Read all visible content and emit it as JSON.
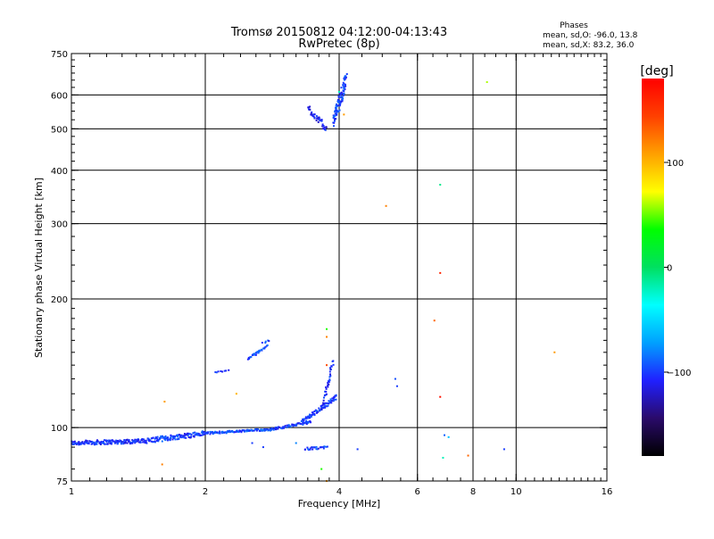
{
  "chart_data": {
    "type": "scatter",
    "title": "Tromsø 20150812 04:12:00-04:13:43",
    "subtitle": "RwPretec (8p)",
    "xlabel": "Frequency [MHz]",
    "ylabel": "Stationary phase Virtual Height [km]",
    "x_scale": "log",
    "y_scale": "log",
    "xlim": [
      1,
      16
    ],
    "ylim": [
      75,
      750
    ],
    "x_ticks": [
      {
        "value": 1,
        "label": "1"
      },
      {
        "value": 2,
        "label": "2"
      },
      {
        "value": 4,
        "label": "4"
      },
      {
        "value": 6,
        "label": "6"
      },
      {
        "value": 8,
        "label": "8"
      },
      {
        "value": 10,
        "label": "10"
      },
      {
        "value": 16,
        "label": "16"
      }
    ],
    "y_ticks": [
      {
        "value": 75,
        "label": "75"
      },
      {
        "value": 100,
        "label": "100"
      },
      {
        "value": 200,
        "label": "200"
      },
      {
        "value": 300,
        "label": "300"
      },
      {
        "value": 400,
        "label": "400"
      },
      {
        "value": 500,
        "label": "500"
      },
      {
        "value": 600,
        "label": "600"
      },
      {
        "value": 750,
        "label": "750"
      }
    ],
    "grid": true,
    "grid_x": [
      2,
      4,
      6,
      8,
      10
    ],
    "grid_y": [
      100,
      200,
      300,
      400,
      500,
      600
    ],
    "stats": {
      "heading": "Phases",
      "line_o": "mean, sd,O: -96.0, 13.8",
      "line_x": "mean, sd,X:  83.2, 36.0"
    },
    "colorbar": {
      "label": "[deg]",
      "range": [
        -180,
        180
      ],
      "ticks": [
        {
          "value": 100,
          "label": "100"
        },
        {
          "value": 0,
          "label": "0"
        },
        {
          "value": -100,
          "label": "−100"
        }
      ],
      "colors": [
        "#000000",
        "#2a0a6a",
        "#2020ff",
        "#00a0ff",
        "#00ffff",
        "#00e060",
        "#00ff00",
        "#ffff00",
        "#ffa000",
        "#ff4000",
        "#ff0000"
      ]
    },
    "series": [
      {
        "style": "trace",
        "segments": [
          {
            "x_start": 1.0,
            "x_end": 1.45,
            "y_start": 92,
            "y_end": 93,
            "n": 160,
            "jitter": 0.012,
            "phase": -105
          },
          {
            "x_start": 1.45,
            "x_end": 2.0,
            "y_start": 93,
            "y_end": 97,
            "n": 130,
            "jitter": 0.014,
            "phase": -100
          },
          {
            "x_start": 2.0,
            "x_end": 2.8,
            "y_start": 97,
            "y_end": 99,
            "n": 110,
            "jitter": 0.006,
            "phase": -95
          },
          {
            "x_start": 2.8,
            "x_end": 3.45,
            "y_start": 99,
            "y_end": 103,
            "n": 70,
            "jitter": 0.006,
            "phase": -100
          },
          {
            "x_start": 3.3,
            "x_end": 3.95,
            "y_start": 103,
            "y_end": 118,
            "n": 80,
            "jitter": 0.012,
            "phase": -100
          },
          {
            "x_start": 3.65,
            "x_end": 3.88,
            "y_start": 110,
            "y_end": 143,
            "n": 40,
            "jitter": 0.012,
            "phase": -105
          },
          {
            "x_start": 2.5,
            "x_end": 2.75,
            "y_start": 145,
            "y_end": 155,
            "n": 30,
            "jitter": 0.006,
            "phase": -95
          },
          {
            "x_start": 2.7,
            "x_end": 2.78,
            "y_start": 158,
            "y_end": 160,
            "n": 5,
            "jitter": 0.004,
            "phase": -100
          },
          {
            "x_start": 2.1,
            "x_end": 2.25,
            "y_start": 135,
            "y_end": 136,
            "n": 8,
            "jitter": 0.004,
            "phase": -100
          },
          {
            "x_start": 3.35,
            "x_end": 3.75,
            "y_start": 89,
            "y_end": 90,
            "n": 24,
            "jitter": 0.008,
            "phase": -100
          },
          {
            "x_start": 3.4,
            "x_end": 3.75,
            "y_start": 560,
            "y_end": 500,
            "n": 40,
            "jitter": 0.02,
            "phase": -110
          },
          {
            "x_start": 3.88,
            "x_end": 4.15,
            "y_start": 520,
            "y_end": 650,
            "n": 90,
            "jitter": 0.035,
            "phase": -100
          }
        ]
      },
      {
        "style": "points",
        "points": [
          {
            "x": 8.6,
            "y": 643,
            "phase": 60
          },
          {
            "x": 6.75,
            "y": 370,
            "phase": -10
          },
          {
            "x": 5.1,
            "y": 330,
            "phase": 120
          },
          {
            "x": 6.75,
            "y": 230,
            "phase": 160
          },
          {
            "x": 6.55,
            "y": 178,
            "phase": 130
          },
          {
            "x": 12.2,
            "y": 150,
            "phase": 110
          },
          {
            "x": 6.75,
            "y": 118,
            "phase": 170
          },
          {
            "x": 5.35,
            "y": 130,
            "phase": -95
          },
          {
            "x": 5.4,
            "y": 125,
            "phase": -100
          },
          {
            "x": 6.9,
            "y": 96,
            "phase": -90
          },
          {
            "x": 7.05,
            "y": 95,
            "phase": -60
          },
          {
            "x": 6.85,
            "y": 85,
            "phase": -20
          },
          {
            "x": 7.8,
            "y": 86,
            "phase": 130
          },
          {
            "x": 9.4,
            "y": 89,
            "phase": -100
          },
          {
            "x": 4.4,
            "y": 89,
            "phase": -100
          },
          {
            "x": 3.75,
            "y": 170,
            "phase": 40
          },
          {
            "x": 3.75,
            "y": 163,
            "phase": 120
          },
          {
            "x": 3.75,
            "y": 140,
            "phase": 140
          },
          {
            "x": 4.0,
            "y": 610,
            "phase": -20
          },
          {
            "x": 4.1,
            "y": 540,
            "phase": 110
          },
          {
            "x": 1.6,
            "y": 82,
            "phase": 120
          },
          {
            "x": 1.62,
            "y": 115,
            "phase": 110
          },
          {
            "x": 2.35,
            "y": 120,
            "phase": 100
          },
          {
            "x": 3.65,
            "y": 80,
            "phase": 40
          },
          {
            "x": 3.75,
            "y": 75,
            "phase": 110
          },
          {
            "x": 3.2,
            "y": 92,
            "phase": -80
          },
          {
            "x": 2.55,
            "y": 92,
            "phase": -100
          },
          {
            "x": 2.7,
            "y": 90,
            "phase": -100
          }
        ]
      }
    ]
  }
}
